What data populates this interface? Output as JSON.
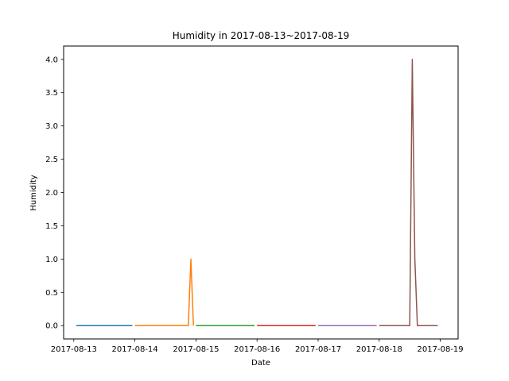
{
  "chart_data": {
    "type": "line",
    "title": "Humidity in 2017-08-13~2017-08-19",
    "xlabel": "Date",
    "ylabel": "Humidity",
    "xlim": [
      "2017-08-12 20:00",
      "2017-08-19 07:00"
    ],
    "ylim": [
      -0.2,
      4.2
    ],
    "x_ticks": [
      "2017-08-13",
      "2017-08-14",
      "2017-08-15",
      "2017-08-16",
      "2017-08-17",
      "2017-08-18",
      "2017-08-19"
    ],
    "y_ticks": [
      "0.0",
      "0.5",
      "1.0",
      "1.5",
      "2.0",
      "2.5",
      "3.0",
      "3.5",
      "4.0"
    ],
    "grid": false,
    "series": [
      {
        "color": "#1f77b4",
        "points": [
          [
            "2017-08-13 01:00",
            0
          ],
          [
            "2017-08-13 23:00",
            0
          ]
        ]
      },
      {
        "color": "#ff7f0e",
        "points": [
          [
            "2017-08-14 00:00",
            0
          ],
          [
            "2017-08-14 21:00",
            0
          ],
          [
            "2017-08-14 22:00",
            1.0
          ],
          [
            "2017-08-14 23:00",
            0
          ]
        ]
      },
      {
        "color": "#2ca02c",
        "points": [
          [
            "2017-08-15 00:00",
            0
          ],
          [
            "2017-08-15 23:00",
            0
          ]
        ]
      },
      {
        "color": "#d62728",
        "points": [
          [
            "2017-08-16 00:00",
            0
          ],
          [
            "2017-08-16 23:00",
            0
          ]
        ]
      },
      {
        "color": "#9467bd",
        "points": [
          [
            "2017-08-17 00:00",
            0
          ],
          [
            "2017-08-17 23:00",
            0
          ]
        ]
      },
      {
        "color": "#8c564b",
        "points": [
          [
            "2017-08-18 00:00",
            0
          ],
          [
            "2017-08-18 12:00",
            0
          ],
          [
            "2017-08-18 13:00",
            4.0
          ],
          [
            "2017-08-18 14:00",
            1.0
          ],
          [
            "2017-08-18 15:00",
            0
          ],
          [
            "2017-08-18 23:00",
            0
          ]
        ]
      }
    ]
  }
}
